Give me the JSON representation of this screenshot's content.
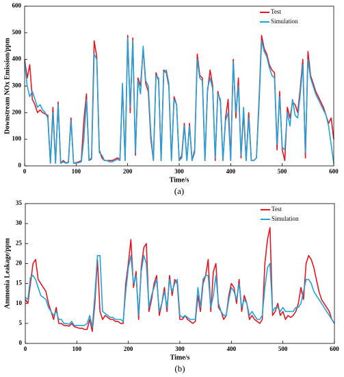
{
  "chart_data": [
    {
      "type": "line",
      "y_label": "Downstream NOx Emission/ppm",
      "x_label": "Time/s",
      "caption": "(a)",
      "xlim": [
        0,
        600
      ],
      "xticks": [
        0,
        100,
        200,
        300,
        400,
        500,
        600
      ],
      "ylim": [
        0,
        600
      ],
      "yticks": [
        0,
        100,
        200,
        300,
        400,
        500,
        600
      ],
      "legend": "upper right",
      "x": [
        0,
        5,
        10,
        15,
        20,
        25,
        30,
        35,
        40,
        45,
        50,
        55,
        60,
        65,
        70,
        75,
        80,
        85,
        90,
        95,
        100,
        105,
        110,
        115,
        120,
        125,
        130,
        135,
        140,
        145,
        150,
        155,
        160,
        165,
        170,
        175,
        180,
        185,
        190,
        195,
        200,
        205,
        210,
        215,
        220,
        225,
        230,
        235,
        240,
        245,
        250,
        255,
        260,
        265,
        270,
        275,
        280,
        285,
        290,
        295,
        300,
        305,
        310,
        315,
        320,
        325,
        330,
        335,
        340,
        345,
        350,
        355,
        360,
        365,
        370,
        375,
        380,
        385,
        390,
        395,
        400,
        405,
        410,
        415,
        420,
        425,
        430,
        435,
        440,
        445,
        450,
        455,
        460,
        465,
        470,
        475,
        480,
        485,
        490,
        495,
        500,
        505,
        510,
        515,
        520,
        525,
        530,
        535,
        540,
        545,
        550,
        555,
        560,
        565,
        570,
        575,
        580,
        585,
        590,
        595,
        600
      ],
      "series": [
        {
          "name": "Test",
          "color": "#e8141e",
          "values": [
            400,
            330,
            380,
            250,
            230,
            200,
            210,
            200,
            195,
            190,
            10,
            220,
            10,
            240,
            10,
            20,
            10,
            15,
            180,
            10,
            12,
            15,
            20,
            170,
            270,
            20,
            30,
            470,
            410,
            60,
            30,
            20,
            20,
            20,
            20,
            25,
            30,
            25,
            300,
            20,
            490,
            200,
            480,
            40,
            330,
            300,
            440,
            310,
            280,
            100,
            20,
            350,
            320,
            20,
            360,
            350,
            300,
            20,
            260,
            230,
            20,
            40,
            160,
            20,
            160,
            20,
            60,
            420,
            340,
            330,
            20,
            280,
            360,
            300,
            20,
            280,
            240,
            20,
            180,
            250,
            20,
            400,
            180,
            330,
            30,
            200,
            20,
            200,
            20,
            20,
            30,
            250,
            490,
            440,
            420,
            380,
            360,
            350,
            60,
            280,
            60,
            20,
            220,
            180,
            240,
            230,
            200,
            290,
            400,
            30,
            430,
            340,
            310,
            280,
            260,
            240,
            220,
            190,
            160,
            180,
            100
          ]
        },
        {
          "name": "Simulation",
          "color": "#1fa3dc",
          "values": [
            390,
            300,
            260,
            280,
            250,
            220,
            230,
            210,
            200,
            180,
            10,
            200,
            10,
            230,
            10,
            15,
            10,
            12,
            170,
            10,
            10,
            12,
            15,
            100,
            250,
            20,
            25,
            420,
            400,
            50,
            40,
            20,
            20,
            15,
            15,
            20,
            25,
            20,
            310,
            20,
            480,
            220,
            470,
            50,
            320,
            270,
            450,
            320,
            300,
            120,
            20,
            340,
            330,
            20,
            350,
            360,
            310,
            20,
            250,
            230,
            20,
            30,
            150,
            20,
            150,
            20,
            50,
            400,
            330,
            320,
            20,
            290,
            330,
            290,
            30,
            270,
            250,
            20,
            170,
            200,
            20,
            390,
            200,
            300,
            40,
            220,
            20,
            180,
            20,
            20,
            30,
            230,
            470,
            430,
            410,
            370,
            340,
            330,
            80,
            260,
            70,
            60,
            200,
            150,
            250,
            190,
            180,
            270,
            380,
            50,
            400,
            330,
            300,
            270,
            250,
            230,
            210,
            190,
            150,
            80,
            10
          ]
        }
      ]
    },
    {
      "type": "line",
      "y_label": "Ammonia Leakage/ppm",
      "x_label": "Time/s",
      "caption": "(b)",
      "xlim": [
        0,
        600
      ],
      "xticks": [
        0,
        100,
        200,
        300,
        400,
        500,
        600
      ],
      "ylim": [
        0,
        35
      ],
      "yticks": [
        0,
        5,
        10,
        15,
        20,
        25,
        30,
        35
      ],
      "legend": "upper right",
      "x": [
        0,
        5,
        10,
        15,
        20,
        25,
        30,
        35,
        40,
        45,
        50,
        55,
        60,
        65,
        70,
        75,
        80,
        85,
        90,
        95,
        100,
        105,
        110,
        115,
        120,
        125,
        130,
        135,
        140,
        145,
        150,
        155,
        160,
        165,
        170,
        175,
        180,
        185,
        190,
        195,
        200,
        205,
        210,
        215,
        220,
        225,
        230,
        235,
        240,
        245,
        250,
        255,
        260,
        265,
        270,
        275,
        280,
        285,
        290,
        295,
        300,
        305,
        310,
        315,
        320,
        325,
        330,
        335,
        340,
        345,
        350,
        355,
        360,
        365,
        370,
        375,
        380,
        385,
        390,
        395,
        400,
        405,
        410,
        415,
        420,
        425,
        430,
        435,
        440,
        445,
        450,
        455,
        460,
        465,
        470,
        475,
        480,
        485,
        490,
        495,
        500,
        505,
        510,
        515,
        520,
        525,
        530,
        535,
        540,
        545,
        550,
        555,
        560,
        565,
        570,
        575,
        580,
        585,
        590,
        595,
        600
      ],
      "series": [
        {
          "name": "Test",
          "color": "#e8141e",
          "values": [
            11,
            10,
            15,
            20,
            21,
            16,
            15,
            14,
            13,
            10,
            8,
            6,
            9,
            5,
            5,
            4.5,
            4.5,
            4.3,
            5,
            4.2,
            4,
            3.8,
            3.8,
            3.5,
            3.5,
            6,
            3,
            10,
            21,
            8,
            6,
            7,
            6.5,
            6,
            6,
            5.5,
            5.5,
            5,
            5,
            15,
            20,
            26,
            14,
            18,
            6,
            19,
            24,
            25,
            8,
            11,
            15,
            17,
            7,
            10,
            14,
            8,
            17,
            12,
            16,
            15,
            6,
            6,
            7,
            6,
            5.5,
            5,
            5.5,
            12,
            8,
            15,
            17,
            21,
            8,
            18,
            20,
            9,
            8,
            6,
            7,
            12,
            15,
            14,
            10,
            16,
            8,
            12,
            10,
            6,
            7,
            6,
            5.5,
            5,
            6,
            20,
            26,
            29,
            7,
            8,
            10,
            7,
            8,
            6,
            7,
            6.5,
            7,
            8,
            10,
            14,
            11,
            20,
            22,
            21,
            19,
            16,
            13,
            11,
            10,
            9,
            8,
            6,
            5
          ]
        },
        {
          "name": "Simulation",
          "color": "#1fa3dc",
          "values": [
            11.5,
            11,
            16.5,
            17,
            16,
            14,
            12,
            11.5,
            11,
            9,
            8,
            7,
            8,
            6,
            6,
            5,
            5,
            4.8,
            5.5,
            4.5,
            4.5,
            4.5,
            4.5,
            4.5,
            5,
            7,
            4,
            12,
            22,
            22,
            8,
            7.5,
            7,
            6.5,
            6.5,
            6,
            6,
            6,
            5.5,
            13,
            19,
            22,
            15,
            17,
            7,
            18,
            22,
            20,
            9,
            12,
            14,
            16,
            8,
            10,
            13,
            9,
            16,
            13,
            15,
            16,
            7,
            6.5,
            7,
            6.5,
            6,
            6,
            6,
            14,
            9,
            16,
            17,
            17,
            9,
            12,
            17,
            10,
            8,
            7,
            7,
            11,
            14,
            13,
            11,
            15,
            9,
            11,
            10,
            7,
            8,
            7,
            6,
            6,
            7,
            14,
            19,
            20,
            8,
            9,
            9,
            8,
            9,
            8,
            8,
            8,
            8,
            9,
            9,
            10,
            13,
            16,
            16,
            15,
            13,
            12,
            11,
            10,
            9,
            8,
            7,
            6,
            5
          ]
        }
      ]
    }
  ]
}
